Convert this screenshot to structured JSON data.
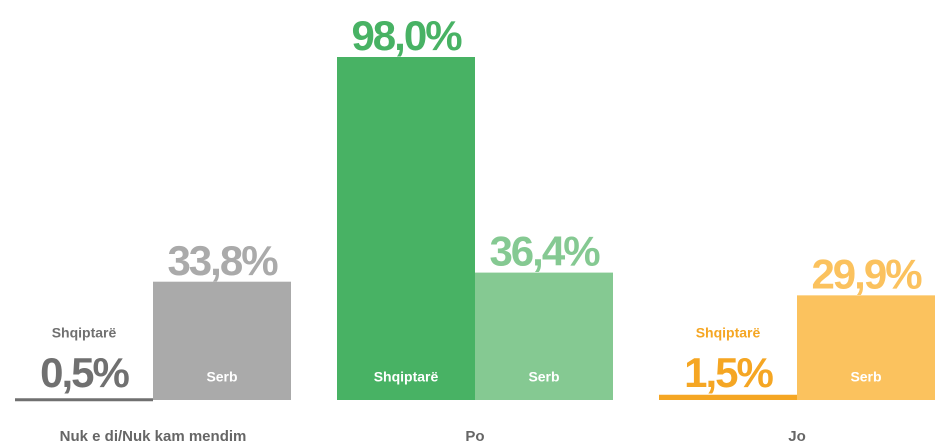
{
  "chart_data": {
    "type": "bar",
    "categories": [
      "Nuk e di/Nuk kam mendim",
      "Po",
      "Jo"
    ],
    "series": [
      {
        "name": "Shqiptarë",
        "colors": [
          "#707070",
          "#48b264",
          "#f5a623"
        ],
        "values": [
          0.5,
          98.0,
          1.5
        ],
        "value_labels": [
          "0,5%",
          "98,0%",
          "1,5%"
        ]
      },
      {
        "name": "Serb",
        "colors": [
          "#aaaaaa",
          "#85c992",
          "#fbc25e"
        ],
        "values": [
          33.8,
          36.4,
          29.9
        ],
        "value_labels": [
          "33,8%",
          "36,4%",
          "29,9%"
        ]
      }
    ],
    "ylim": [
      0,
      100
    ]
  }
}
